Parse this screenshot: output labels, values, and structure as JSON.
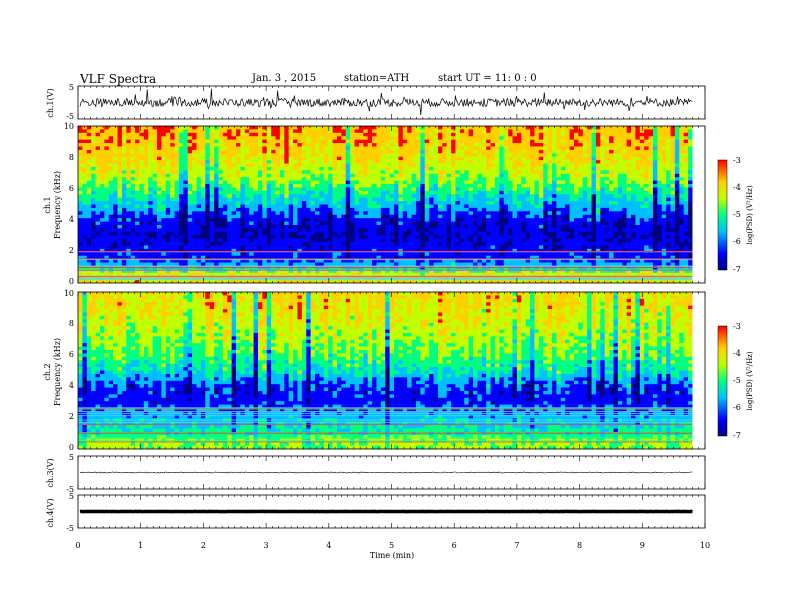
{
  "header": {
    "title": "VLF Spectra",
    "date": "Jan. 3 , 2015",
    "station": "station=ATH",
    "start": "start UT = 11: 0 : 0"
  },
  "x_axis": {
    "label": "Time (min)",
    "ticks": [
      "0",
      "1",
      "2",
      "3",
      "4",
      "5",
      "6",
      "7",
      "8",
      "9",
      "10"
    ]
  },
  "panels": {
    "ch1_wave": {
      "ylabel": "ch.1(V)",
      "ticks": [
        "5",
        "-5"
      ]
    },
    "ch1_spec": {
      "ylabel_line1": "ch.1",
      "ylabel_line2": "Frequency (kHz)",
      "ticks": [
        "10",
        "8",
        "6",
        "4",
        "2",
        "0"
      ]
    },
    "ch2_spec": {
      "ylabel_line1": "ch.2",
      "ylabel_line2": "Frequency (kHz)",
      "ticks": [
        "10",
        "8",
        "6",
        "4",
        "2",
        "0"
      ]
    },
    "ch3_wave": {
      "ylabel": "ch.3(V)",
      "ticks": [
        "5",
        "-5"
      ]
    },
    "ch4_wave": {
      "ylabel": "ch.4(V)",
      "ticks": [
        "5",
        "-5"
      ]
    }
  },
  "colorbar": {
    "label": "log(PSD) (V²/Hz)",
    "ticks": [
      "-3",
      "-4",
      "-5",
      "-6",
      "-7"
    ]
  },
  "chart_data": {
    "type": "heatmap",
    "description_units": "spectrogram: time in minutes, frequency in kHz, color = log10 PSD",
    "x_range_min": [
      0,
      10
    ],
    "data_extent_min": 9.8,
    "freq_range_khz": [
      0,
      10
    ],
    "psd_log_range": [
      -7,
      -3
    ],
    "colormap": [
      "#000080",
      "#0000ff",
      "#00c0ff",
      "#00ff80",
      "#c0ff00",
      "#ffd000",
      "#ff0000"
    ],
    "ch1_freq_profile": [
      {
        "f": 0.5,
        "v": -3.8
      },
      {
        "f": 1.0,
        "v": -5.4
      },
      {
        "f": 1.5,
        "v": -6.2
      },
      {
        "f": 2.0,
        "v": -6.3
      },
      {
        "f": 3.0,
        "v": -6.6
      },
      {
        "f": 4.0,
        "v": -6.4
      },
      {
        "f": 5.0,
        "v": -5.6
      },
      {
        "f": 6.0,
        "v": -4.9
      },
      {
        "f": 7.0,
        "v": -4.3
      },
      {
        "f": 8.0,
        "v": -3.9
      },
      {
        "f": 9.0,
        "v": -3.6
      },
      {
        "f": 10.0,
        "v": -3.5
      }
    ],
    "ch2_freq_profile": [
      {
        "f": 0.5,
        "v": -4.5
      },
      {
        "f": 1.0,
        "v": -5.1
      },
      {
        "f": 1.5,
        "v": -5.4
      },
      {
        "f": 2.0,
        "v": -5.6
      },
      {
        "f": 3.0,
        "v": -6.3
      },
      {
        "f": 4.0,
        "v": -6.1
      },
      {
        "f": 5.0,
        "v": -5.2
      },
      {
        "f": 6.0,
        "v": -4.7
      },
      {
        "f": 7.0,
        "v": -4.4
      },
      {
        "f": 8.0,
        "v": -4.1
      },
      {
        "f": 9.0,
        "v": -3.9
      },
      {
        "f": 10.0,
        "v": -3.8
      }
    ],
    "waveforms": {
      "ch1_level_V": 0,
      "ch1_noise_V": 2.5,
      "ch3_level_V": 0,
      "ch3_noise_V": 0.3,
      "ch4_level_V": 0,
      "ch4_noise_V": 0.05,
      "y_range_V": [
        -5,
        5
      ]
    }
  }
}
